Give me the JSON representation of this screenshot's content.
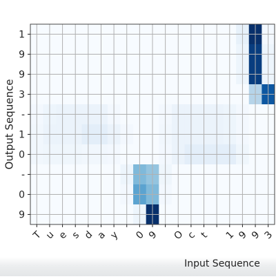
{
  "chart_data": {
    "type": "heatmap",
    "title": "",
    "xlabel": "Input Sequence",
    "ylabel": "Output Sequence",
    "x_labels": [
      "T",
      "u",
      "e",
      "s",
      "d",
      "a",
      "y",
      " ",
      "0",
      "9",
      " ",
      "O",
      "c",
      "t",
      " ",
      "1",
      "9",
      "9",
      "3"
    ],
    "y_labels": [
      "1",
      "9",
      "9",
      "3",
      "-",
      "1",
      "0",
      "-",
      "0",
      "9"
    ],
    "colormap": "Blues",
    "grid": true,
    "value_range": [
      0,
      1
    ],
    "values": [
      [
        0.0,
        0.0,
        0.0,
        0.0,
        0.0,
        0.0,
        0.0,
        0.0,
        0.0,
        0.0,
        0.0,
        0.0,
        0.0,
        0.0,
        0.0,
        0.0,
        0.08,
        1.0,
        0.02
      ],
      [
        0.0,
        0.0,
        0.0,
        0.0,
        0.0,
        0.0,
        0.0,
        0.0,
        0.0,
        0.0,
        0.0,
        0.0,
        0.0,
        0.0,
        0.0,
        0.0,
        0.05,
        0.95,
        0.05
      ],
      [
        0.0,
        0.0,
        0.0,
        0.0,
        0.0,
        0.0,
        0.0,
        0.0,
        0.0,
        0.0,
        0.0,
        0.0,
        0.0,
        0.0,
        0.0,
        0.0,
        0.05,
        0.95,
        0.05
      ],
      [
        0.0,
        0.0,
        0.0,
        0.0,
        0.0,
        0.0,
        0.0,
        0.0,
        0.0,
        0.0,
        0.0,
        0.0,
        0.0,
        0.0,
        0.0,
        0.0,
        0.0,
        0.3,
        0.85
      ],
      [
        0.02,
        0.05,
        0.06,
        0.06,
        0.06,
        0.06,
        0.02,
        0.0,
        0.0,
        0.0,
        0.02,
        0.06,
        0.06,
        0.06,
        0.06,
        0.05,
        0.02,
        0.0,
        0.0
      ],
      [
        0.03,
        0.06,
        0.06,
        0.06,
        0.1,
        0.1,
        0.06,
        0.02,
        0.0,
        0.0,
        0.03,
        0.06,
        0.06,
        0.06,
        0.06,
        0.05,
        0.02,
        0.0,
        0.0
      ],
      [
        0.03,
        0.04,
        0.04,
        0.04,
        0.03,
        0.03,
        0.02,
        0.0,
        0.0,
        0.0,
        0.02,
        0.06,
        0.1,
        0.1,
        0.1,
        0.1,
        0.04,
        0.0,
        0.0
      ],
      [
        0.0,
        0.0,
        0.0,
        0.0,
        0.0,
        0.0,
        0.0,
        0.05,
        0.45,
        0.4,
        0.04,
        0.0,
        0.0,
        0.0,
        0.0,
        0.0,
        0.0,
        0.0,
        0.0
      ],
      [
        0.0,
        0.0,
        0.0,
        0.0,
        0.0,
        0.0,
        0.0,
        0.02,
        0.55,
        0.45,
        0.02,
        0.0,
        0.0,
        0.0,
        0.0,
        0.0,
        0.0,
        0.0,
        0.0
      ],
      [
        0.0,
        0.0,
        0.0,
        0.0,
        0.0,
        0.0,
        0.0,
        0.0,
        0.05,
        1.0,
        0.0,
        0.0,
        0.0,
        0.0,
        0.0,
        0.0,
        0.0,
        0.0,
        0.0
      ]
    ]
  }
}
